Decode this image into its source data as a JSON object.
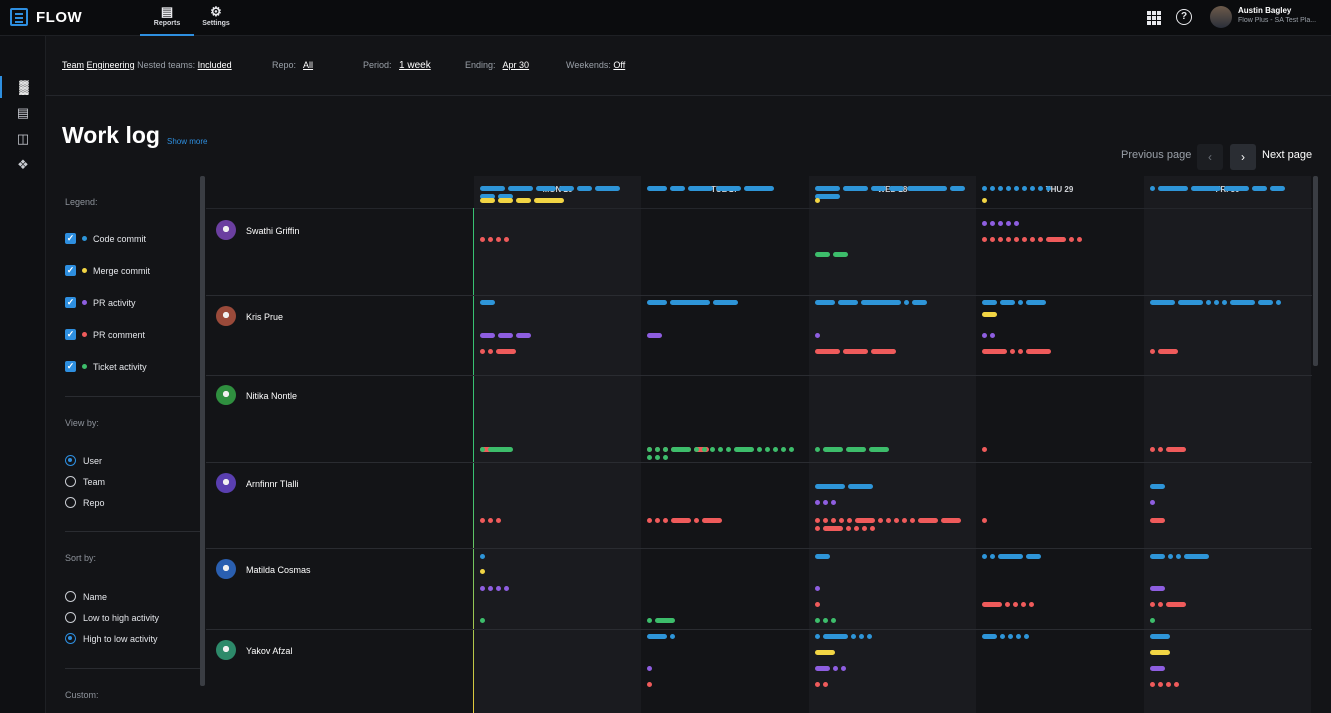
{
  "app": {
    "name": "FLOW"
  },
  "nav": {
    "tabs": [
      {
        "label": "Reports"
      },
      {
        "label": "Settings"
      }
    ]
  },
  "user": {
    "name": "Austin Bagley",
    "subtitle": "Flow Plus - SA Test Pla..."
  },
  "filters": {
    "team_label": "Team",
    "team_value": "Engineering",
    "nested_label": "Nested teams:",
    "nested_value": "Included",
    "repo_label": "Repo:",
    "repo_value": "All",
    "period_label": "Period:",
    "period_value": "1 week",
    "ending_label": "Ending:",
    "ending_value": "Apr 30",
    "weekends_label": "Weekends:",
    "weekends_value": "Off"
  },
  "page": {
    "title": "Work log",
    "show_more": "Show more"
  },
  "pager": {
    "previous": "Previous page",
    "next": "Next page"
  },
  "legend": {
    "title": "Legend:",
    "items": [
      {
        "label": "Code commit",
        "color": "#2e95d8"
      },
      {
        "label": "Merge commit",
        "color": "#f2d544"
      },
      {
        "label": "PR activity",
        "color": "#8e5ee0"
      },
      {
        "label": "PR comment",
        "color": "#ef5b5b"
      },
      {
        "label": "Ticket activity",
        "color": "#3dbd6b"
      }
    ]
  },
  "view_by": {
    "title": "View by:",
    "options": [
      "User",
      "Team",
      "Repo"
    ],
    "selected": "User"
  },
  "sort_by": {
    "title": "Sort by:",
    "options": [
      "Name",
      "Low to high activity",
      "High to low activity"
    ],
    "selected": "High to low activity"
  },
  "custom": {
    "title": "Custom:"
  },
  "days": [
    "MON 26",
    "TUE 27",
    "WED 28",
    "THU 29",
    "FRI 30"
  ],
  "people": [
    {
      "name": "Swathi Griffin",
      "avatar": "#6b3fa0"
    },
    {
      "name": "Kris Prue",
      "avatar": "#9a4a3a"
    },
    {
      "name": "Nitika Nontle",
      "avatar": "#2f8f3f"
    },
    {
      "name": "Arnfinnr Tlalli",
      "avatar": "#5a3fb0"
    },
    {
      "name": "Matilda Cosmas",
      "avatar": "#2a5fb0"
    },
    {
      "name": "Yakov Afzal",
      "avatar": "#2d8a6a"
    }
  ]
}
